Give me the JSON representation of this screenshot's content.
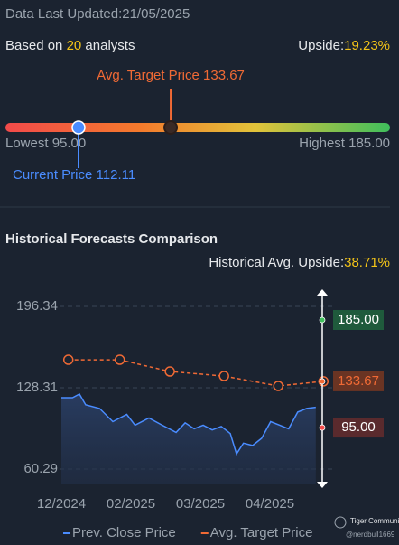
{
  "header": {
    "updated": "Data Last Updated:21/05/2025",
    "based_prefix": "Based on",
    "analyst_count": "20",
    "based_suffix": "analysts",
    "upside_label": "Upside:",
    "upside_value": "19.23%"
  },
  "gauge": {
    "min": 95.0,
    "max": 185.0,
    "current": 112.11,
    "target": 133.67,
    "target_label": "Avg. Target Price 133.67",
    "lowest_label": "Lowest 95.00",
    "highest_label": "Highest 185.00",
    "current_label": "Current Price 112.11"
  },
  "section": {
    "title": "Historical Forecasts Comparison",
    "avg_upside_label": "Historical Avg. Upside:",
    "avg_upside_value": "38.71%"
  },
  "chart_data": {
    "type": "line",
    "xlim": [
      0,
      3.8
    ],
    "xticks": [
      {
        "value": 0,
        "label": "12/2024"
      },
      {
        "value": 1,
        "label": "02/2025"
      },
      {
        "value": 2,
        "label": "03/2025"
      },
      {
        "value": 3,
        "label": "04/2025"
      }
    ],
    "ylim": [
      60.29,
      196.34
    ],
    "yticks": [
      {
        "value": 60.29,
        "label": "60.29"
      },
      {
        "value": 128.31,
        "label": "128.31"
      },
      {
        "value": 196.34,
        "label": "196.34"
      }
    ],
    "grid": true,
    "series": [
      {
        "name": "Prev. Close Price",
        "color": "#4a8cff",
        "x": [
          0,
          0.16,
          0.26,
          0.35,
          0.55,
          0.74,
          0.94,
          1.06,
          1.26,
          1.45,
          1.65,
          1.78,
          1.91,
          2.04,
          2.17,
          2.3,
          2.43,
          2.52,
          2.62,
          2.75,
          2.88,
          3.01,
          3.14,
          3.27,
          3.4,
          3.53,
          3.66
        ],
        "values": [
          120,
          120,
          123,
          114,
          111,
          100,
          106,
          97,
          103,
          97,
          91,
          99,
          94,
          97,
          93,
          96,
          90,
          73,
          82,
          80,
          86,
          100,
          97,
          94,
          108,
          111,
          112
        ]
      },
      {
        "name": "Avg. Target Price",
        "color": "#f06a35",
        "x": [
          0.1,
          0.84,
          1.56,
          2.34,
          3.12,
          3.77
        ],
        "values": [
          151.7,
          151.7,
          141.9,
          138.1,
          129.8,
          133.67
        ]
      }
    ],
    "cursor": {
      "values": [
        185.0,
        133.67,
        95.0
      ],
      "value_labels": [
        "185.00",
        "133.67",
        "95.00"
      ],
      "colors": [
        "#1f5a3c",
        "#6a3423",
        "#5a2a2d"
      ],
      "text_colors": [
        "#ffffff",
        "#f06a35",
        "#ffffff"
      ]
    }
  },
  "watermark": {
    "brand": "Tiger Community",
    "user": "@nerdbull1669"
  }
}
